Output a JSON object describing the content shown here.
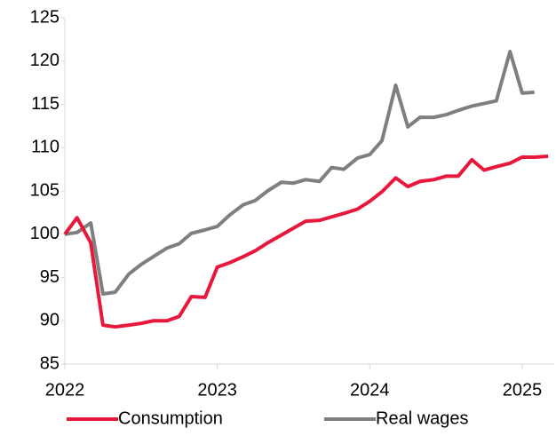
{
  "chart_data": {
    "type": "line",
    "x": [
      2022,
      2022.08,
      2022.17,
      2022.25,
      2022.33,
      2022.42,
      2022.5,
      2022.58,
      2022.67,
      2022.75,
      2022.83,
      2022.92,
      2023,
      2023.08,
      2023.17,
      2023.25,
      2023.33,
      2023.42,
      2023.5,
      2023.58,
      2023.67,
      2023.75,
      2023.83,
      2023.92,
      2024,
      2024.08,
      2024.17,
      2024.25,
      2024.33,
      2024.42,
      2024.5,
      2024.58,
      2024.67,
      2024.75,
      2024.83,
      2024.92,
      2025,
      2025.08,
      2025.17
    ],
    "series": [
      {
        "name": "Consumption",
        "color": "#e8173c",
        "values": [
          100,
          101.9,
          99,
          89.5,
          89.3,
          89.5,
          89.7,
          90,
          90,
          90.5,
          92.8,
          92.7,
          96.2,
          96.7,
          97.4,
          98.1,
          99,
          99.9,
          100.7,
          101.5,
          101.6,
          102,
          102.4,
          102.9,
          103.8,
          104.9,
          106.5,
          105.5,
          106.1,
          106.3,
          106.7,
          106.7,
          108.6,
          107.4,
          107.8,
          108.2,
          108.9,
          108.9,
          109
        ]
      },
      {
        "name": "Real wages",
        "color": "#7f7f7f",
        "values": [
          100,
          100.2,
          101.3,
          93.1,
          93.3,
          95.4,
          96.5,
          97.4,
          98.4,
          98.9,
          100.1,
          100.5,
          100.9,
          102.2,
          103.4,
          103.9,
          105,
          106,
          105.9,
          106.3,
          106.1,
          107.7,
          107.5,
          108.8,
          109.2,
          110.8,
          117.2,
          112.4,
          113.5,
          113.5,
          113.8,
          114.3,
          114.8,
          115.1,
          115.4,
          121.1,
          116.3,
          116.4,
          null
        ]
      }
    ],
    "xlim": [
      2022,
      2025.21
    ],
    "xticks": [
      2022,
      2023,
      2024,
      2025
    ],
    "ylim": [
      85,
      125
    ],
    "yticks": [
      85,
      90,
      95,
      100,
      105,
      110,
      115,
      120,
      125
    ],
    "grid": false,
    "legend": "bottom"
  }
}
